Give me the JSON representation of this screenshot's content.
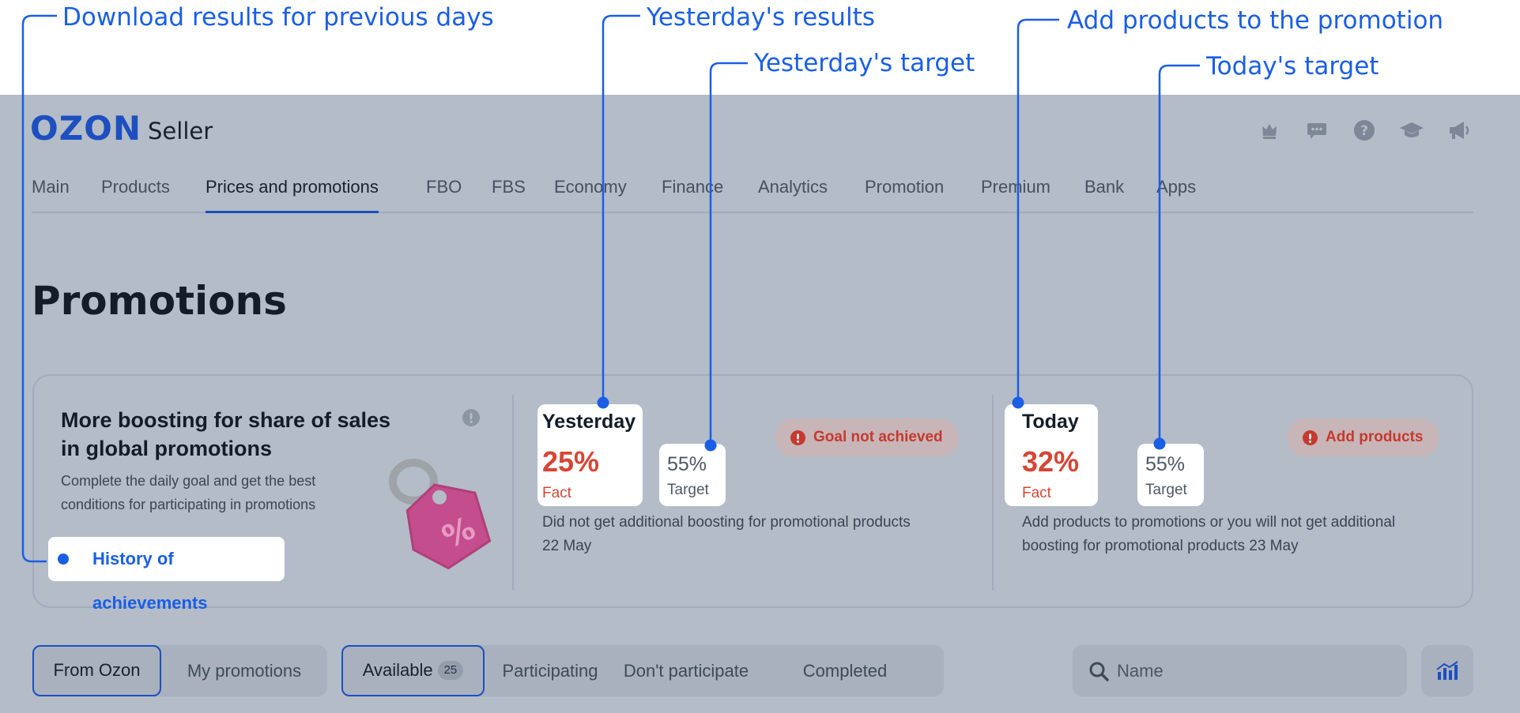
{
  "callouts": {
    "history": "Download results for previous days",
    "yesterday_results": "Yesterday's results",
    "yesterday_target": "Yesterday's target",
    "add_products": "Add products to the promotion",
    "today_target": "Today's target"
  },
  "logo": {
    "mark": "OZON",
    "suffix": "Seller"
  },
  "header_icons": [
    "crown-icon",
    "chat-icon",
    "help-icon",
    "academy-icon",
    "announcement-icon"
  ],
  "nav": {
    "items": [
      "Main",
      "Products",
      "Prices and promotions",
      "FBO",
      "FBS",
      "Economy",
      "Finance",
      "Analytics",
      "Promotion",
      "Premium",
      "Bank",
      "Apps"
    ],
    "active": "Prices and promotions"
  },
  "page_title": "Promotions",
  "promo": {
    "heading": "More boosting for share of sales in global promotions",
    "description": "Complete the daily goal and get the best conditions for participating in promotions",
    "history_link": "History of achievements",
    "yesterday": {
      "label": "Yesterday",
      "fact_value": "25%",
      "fact_label": "Fact",
      "target_value": "55%",
      "target_label": "Target",
      "status": "Goal not achieved",
      "note": "Did not get additional boosting for promotional products 22 May"
    },
    "today": {
      "label": "Today",
      "fact_value": "32%",
      "fact_label": "Fact",
      "target_value": "55%",
      "target_label": "Target",
      "status": "Add products",
      "note": "Add products to promotions or you will not get additional boosting for promotional products 23 May"
    }
  },
  "source_tabs": {
    "from_ozon": "From Ozon",
    "my_promotions": "My promotions",
    "selected": "From Ozon"
  },
  "status_tabs": {
    "available": "Available",
    "available_count": "25",
    "participating": "Participating",
    "dont_participate": "Don't participate",
    "completed": "Completed",
    "selected": "Available"
  },
  "search": {
    "placeholder": "Name"
  },
  "colors": {
    "accent": "#1d4fc0",
    "callout": "#1a5ee6",
    "alert_red": "#d64534",
    "overlay": "#b3bcc7"
  }
}
